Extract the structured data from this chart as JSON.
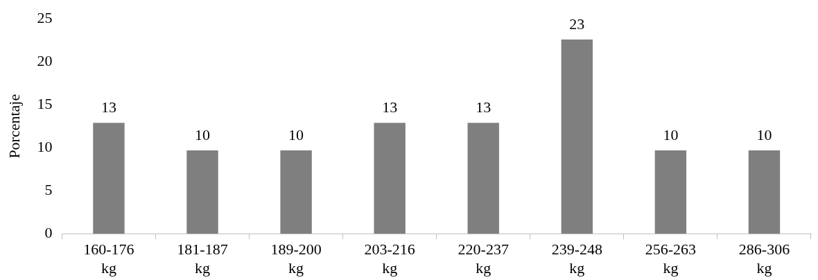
{
  "chart_data": {
    "type": "bar",
    "ylabel": "Porcentaje",
    "categories": [
      "160-176 kg",
      "181-187 kg",
      "189-200 kg",
      "203-216 kg",
      "220-237 kg",
      "239-248 kg",
      "256-263 kg",
      "286-306 kg"
    ],
    "values": [
      12.9,
      9.7,
      9.7,
      12.9,
      12.9,
      22.6,
      9.7,
      9.7
    ],
    "value_labels": [
      "13",
      "10",
      "10",
      "13",
      "13",
      "23",
      "10",
      "10"
    ],
    "color": "#7f7f7f",
    "ylim": [
      0,
      25
    ],
    "yticks": [
      0,
      5,
      10,
      15,
      20,
      25
    ],
    "grid": false,
    "legend": false
  }
}
